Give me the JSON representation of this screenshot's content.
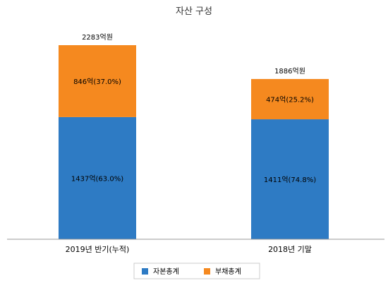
{
  "chart_data": {
    "type": "bar",
    "stacked": true,
    "title": "자산 구성",
    "categories": [
      "2019년 반기(누적)",
      "2018년 기말"
    ],
    "totals": [
      2283,
      1886
    ],
    "total_labels": [
      "2283억원",
      "1886억원"
    ],
    "series": [
      {
        "name": "자본총계",
        "color": "#2e7bc4",
        "values": [
          1437,
          1411
        ],
        "labels": [
          "1437억(63.0%)",
          "1411억(74.8%)"
        ]
      },
      {
        "name": "부채총계",
        "color": "#f5891f",
        "values": [
          846,
          474
        ],
        "labels": [
          "846억(37.0%)",
          "474억(25.2%)"
        ]
      }
    ],
    "ylim": [
      0,
      2283
    ],
    "grid": false,
    "legend_position": "bottom"
  }
}
